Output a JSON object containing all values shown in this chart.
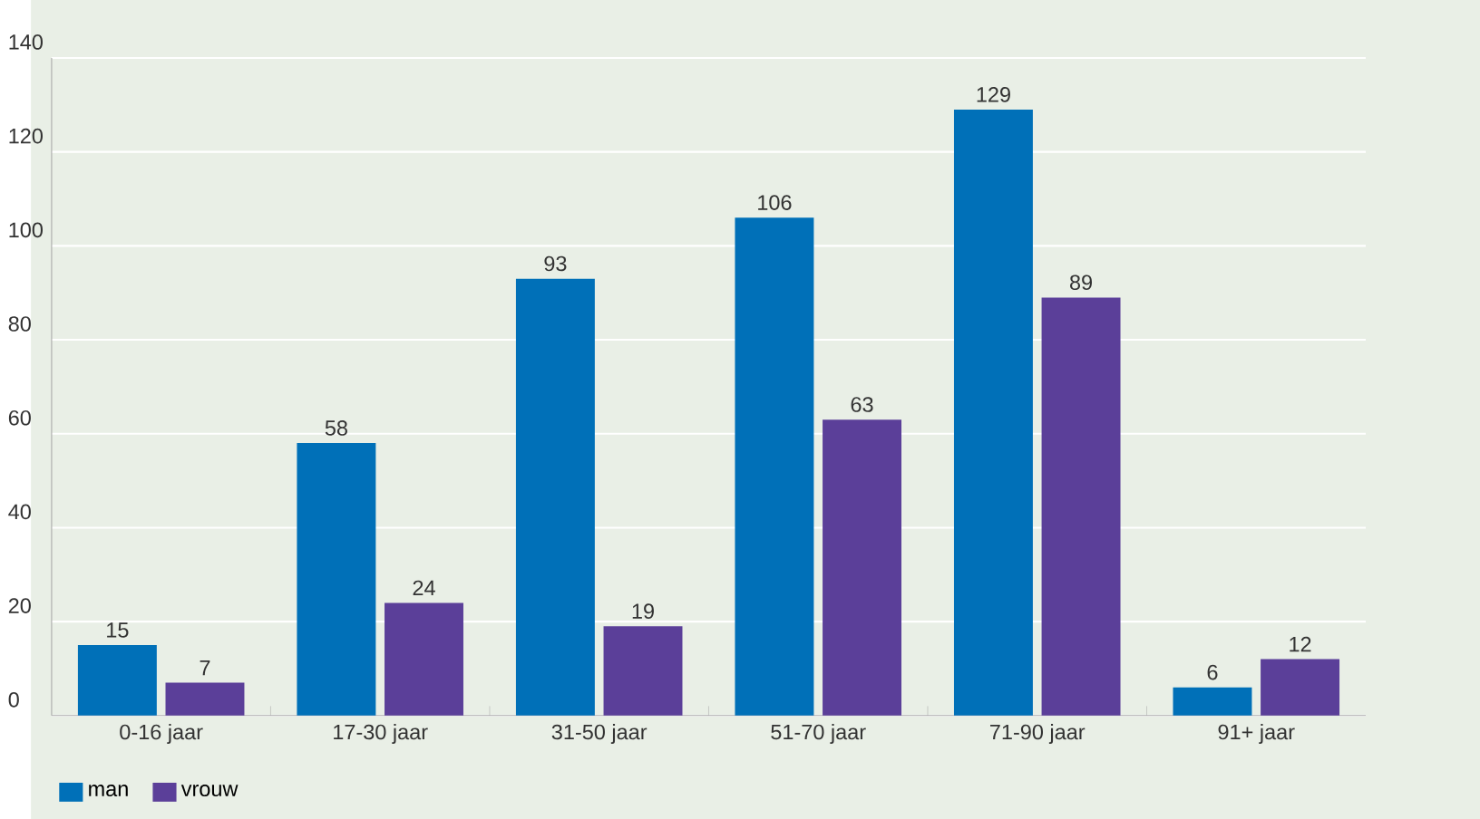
{
  "chart_data": {
    "type": "bar",
    "categories": [
      "0-16 jaar",
      "17-30 jaar",
      "31-50 jaar",
      "51-70 jaar",
      "71-90 jaar",
      "91+ jaar"
    ],
    "series": [
      {
        "name": "man",
        "color": "#0070b8",
        "values": [
          15,
          58,
          93,
          106,
          129,
          6
        ]
      },
      {
        "name": "vrouw",
        "color": "#5b3f99",
        "values": [
          7,
          24,
          19,
          63,
          89,
          12
        ]
      }
    ],
    "ylim": [
      0,
      140
    ],
    "yticks": [
      0,
      20,
      40,
      60,
      80,
      100,
      120,
      140
    ],
    "grid": "y",
    "legend": "bottom left",
    "data_labels": true
  }
}
